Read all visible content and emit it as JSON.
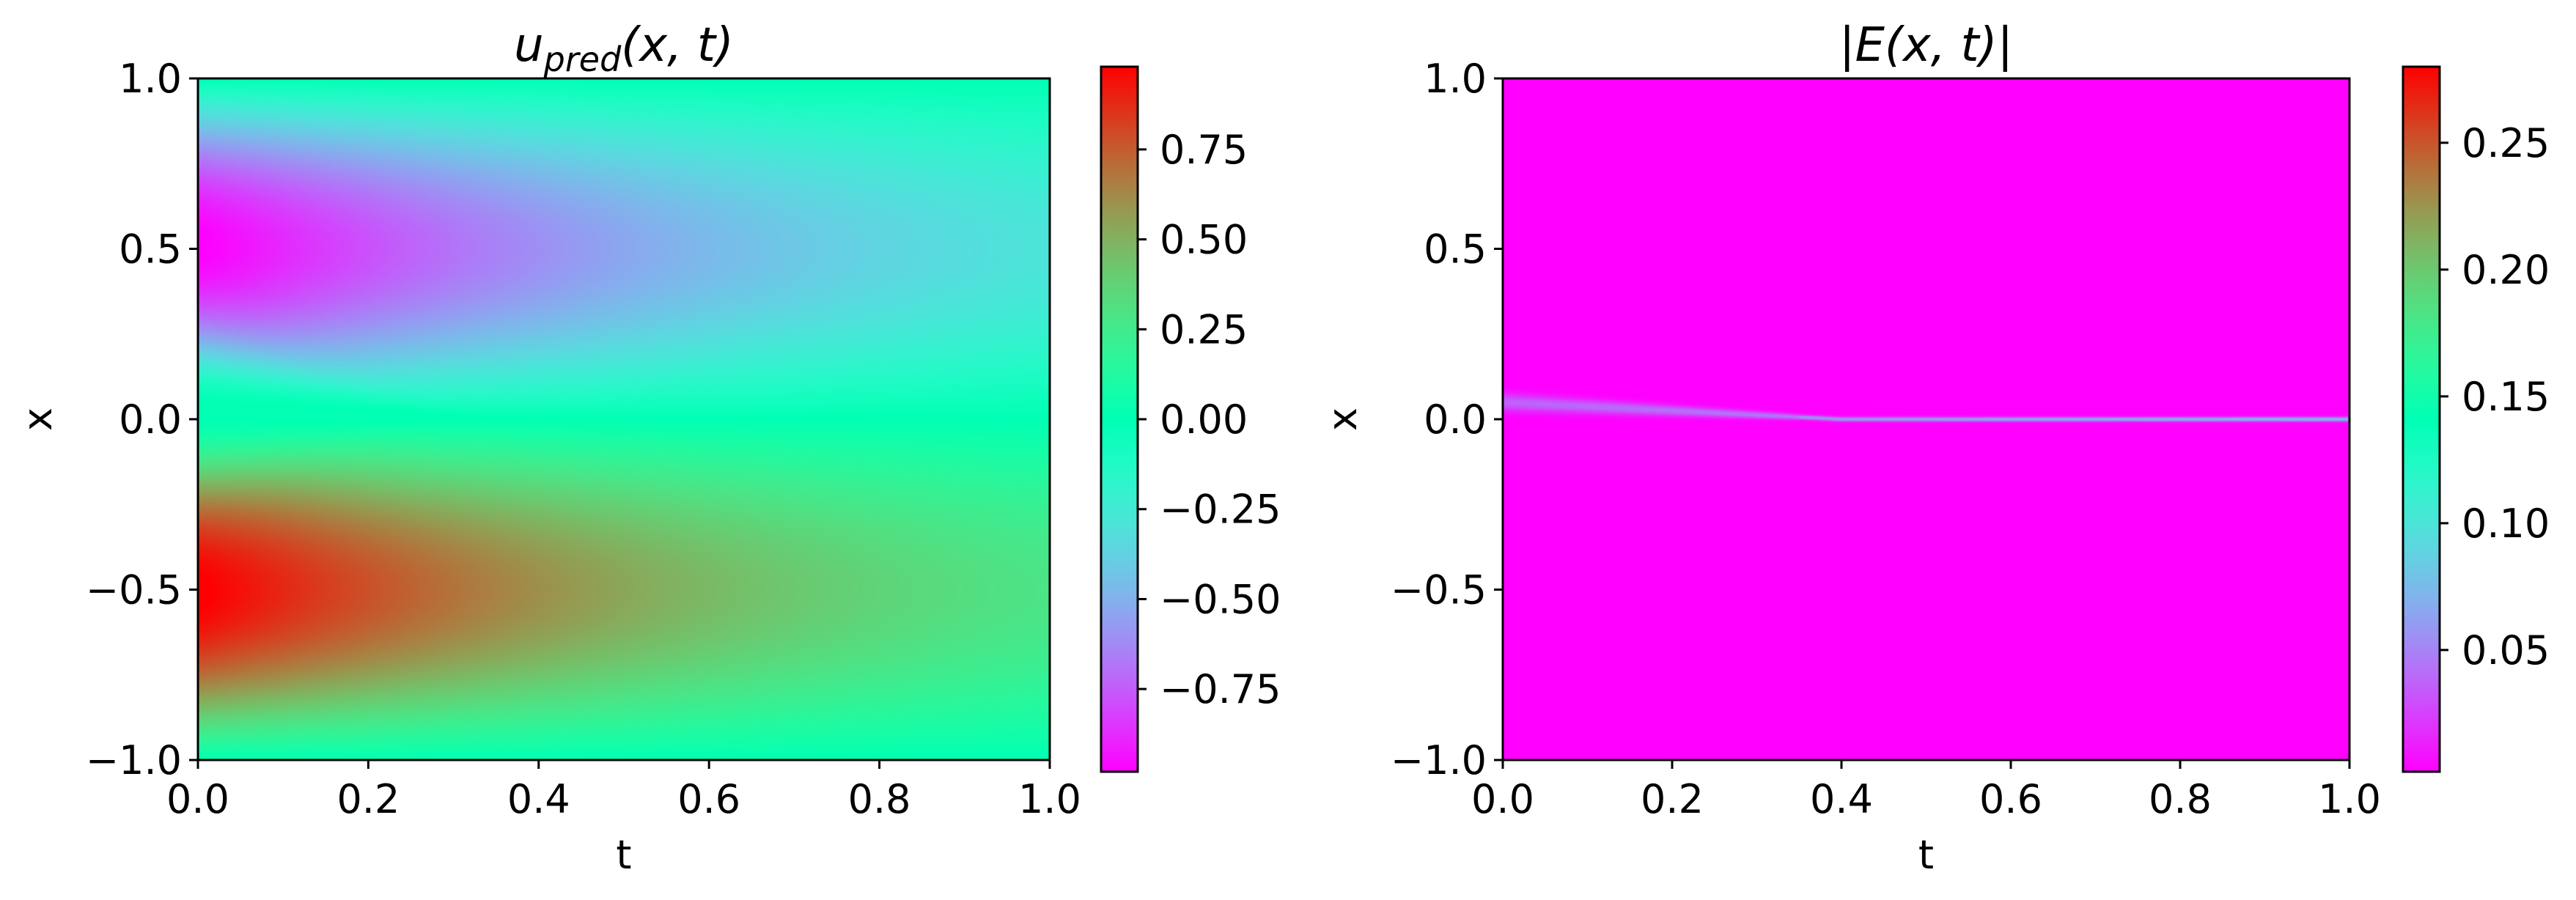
{
  "chart_data": [
    {
      "type": "heatmap",
      "title": "u_pred(x, t)",
      "title_main": "u",
      "title_sub": "pred",
      "title_rest": "(x, t)",
      "xlabel": "t",
      "ylabel": "x",
      "xlim": [
        0.0,
        1.0
      ],
      "ylim": [
        -1.0,
        1.0
      ],
      "xticks": [
        "0.0",
        "0.2",
        "0.4",
        "0.6",
        "0.8",
        "1.0"
      ],
      "yticks": [
        "1.0",
        "0.5",
        "0.0",
        "−0.5",
        "−1.0"
      ],
      "colormap": "rainbow",
      "colorbar": {
        "range": [
          -0.98,
          0.98
        ],
        "ticks": [
          "0.75",
          "0.50",
          "0.25",
          "0.00",
          "−0.25",
          "−0.50",
          "−0.75"
        ],
        "tick_values": [
          0.75,
          0.5,
          0.25,
          0.0,
          -0.25,
          -0.5,
          -0.75
        ]
      },
      "field": "burgers_shock_prediction"
    },
    {
      "type": "heatmap",
      "title": "|E(x, t)|",
      "xlabel": "t",
      "ylabel": "x",
      "xlim": [
        0.0,
        1.0
      ],
      "ylim": [
        -1.0,
        1.0
      ],
      "xticks": [
        "0.0",
        "0.2",
        "0.4",
        "0.6",
        "0.8",
        "1.0"
      ],
      "yticks": [
        "1.0",
        "0.5",
        "0.0",
        "−0.5",
        "−1.0"
      ],
      "colormap": "rainbow",
      "colorbar": {
        "range": [
          0.002,
          0.28
        ],
        "ticks": [
          "0.25",
          "0.20",
          "0.15",
          "0.10",
          "0.05"
        ],
        "tick_values": [
          0.25,
          0.2,
          0.15,
          0.1,
          0.05
        ]
      },
      "field": "absolute_error_along_shock"
    }
  ]
}
